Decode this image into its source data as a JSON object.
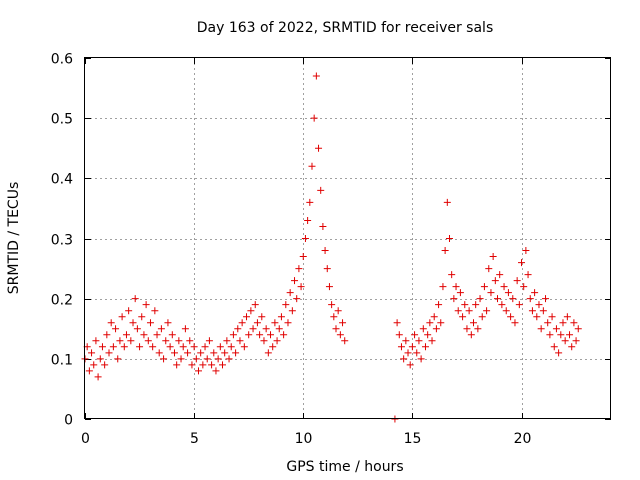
{
  "chart_data": {
    "type": "scatter",
    "title": "Day 163 of 2022, SRMTID for receiver sals",
    "xlabel": "GPS time / hours",
    "ylabel": "SRMTID / TECUs",
    "xlim": [
      0,
      24.1
    ],
    "ylim": [
      0,
      0.6
    ],
    "x_ticks": [
      0,
      5,
      10,
      15,
      20
    ],
    "x_tick_labels": [
      "0",
      "5",
      "10",
      "15",
      "20"
    ],
    "y_ticks": [
      0,
      0.1,
      0.2,
      0.3,
      0.4,
      0.5,
      0.6
    ],
    "y_tick_labels": [
      "0",
      "0.1",
      "0.2",
      "0.3",
      "0.4",
      "0.5",
      "0.6"
    ],
    "grid": true,
    "marker": "+",
    "marker_color": "#e00000",
    "series": [
      {
        "name": "SRMTID",
        "segments": [
          {
            "x": [
              0.0,
              0.1,
              0.2,
              0.3,
              0.4,
              0.5,
              0.6,
              0.7,
              0.8,
              0.9,
              1.0,
              1.1,
              1.2,
              1.3,
              1.4,
              1.5,
              1.6,
              1.7,
              1.8,
              1.9,
              2.0,
              2.1,
              2.2,
              2.3,
              2.4,
              2.5,
              2.6,
              2.7,
              2.8,
              2.9,
              3.0,
              3.1,
              3.2,
              3.3,
              3.4,
              3.5,
              3.6,
              3.7,
              3.8,
              3.9,
              4.0,
              4.1,
              4.2,
              4.3,
              4.4,
              4.5,
              4.6,
              4.7,
              4.8,
              4.9,
              5.0,
              5.1,
              5.2,
              5.3,
              5.4,
              5.5,
              5.6,
              5.7,
              5.8,
              5.9,
              6.0,
              6.1,
              6.2,
              6.3,
              6.4,
              6.5,
              6.6,
              6.7,
              6.8,
              6.9,
              7.0,
              7.1,
              7.2,
              7.3,
              7.4,
              7.5,
              7.6,
              7.7,
              7.8,
              7.9,
              8.0,
              8.1,
              8.2,
              8.3,
              8.4,
              8.5,
              8.6,
              8.7,
              8.8,
              8.9,
              9.0,
              9.1,
              9.2,
              9.3,
              9.4,
              9.5,
              9.6,
              9.7,
              9.8,
              9.9,
              10.0,
              10.1,
              10.2,
              10.3,
              10.4,
              10.5,
              10.6,
              10.7,
              10.8,
              10.9,
              11.0,
              11.1,
              11.2,
              11.3,
              11.4,
              11.5,
              11.6,
              11.7,
              11.8,
              11.9
            ],
            "y": [
              0.1,
              0.12,
              0.08,
              0.11,
              0.09,
              0.13,
              0.07,
              0.1,
              0.12,
              0.09,
              0.14,
              0.11,
              0.16,
              0.12,
              0.15,
              0.1,
              0.13,
              0.17,
              0.12,
              0.14,
              0.18,
              0.13,
              0.16,
              0.2,
              0.15,
              0.12,
              0.17,
              0.14,
              0.19,
              0.13,
              0.16,
              0.12,
              0.18,
              0.14,
              0.11,
              0.15,
              0.1,
              0.13,
              0.16,
              0.12,
              0.14,
              0.11,
              0.09,
              0.13,
              0.1,
              0.12,
              0.15,
              0.11,
              0.13,
              0.09,
              0.12,
              0.1,
              0.08,
              0.11,
              0.09,
              0.12,
              0.1,
              0.13,
              0.09,
              0.11,
              0.08,
              0.1,
              0.12,
              0.09,
              0.11,
              0.13,
              0.1,
              0.12,
              0.14,
              0.11,
              0.15,
              0.13,
              0.16,
              0.12,
              0.17,
              0.14,
              0.18,
              0.15,
              0.19,
              0.16,
              0.14,
              0.17,
              0.13,
              0.15,
              0.11,
              0.14,
              0.12,
              0.16,
              0.13,
              0.15,
              0.17,
              0.14,
              0.19,
              0.16,
              0.21,
              0.18,
              0.23,
              0.2,
              0.25,
              0.22,
              0.27,
              0.3,
              0.33,
              0.36,
              0.42,
              0.5,
              0.57,
              0.45,
              0.38,
              0.32,
              0.28,
              0.25,
              0.22,
              0.19,
              0.17,
              0.15,
              0.18,
              0.14,
              0.16,
              0.13
            ]
          },
          {
            "x": [
              14.2
            ],
            "y": [
              0.0
            ]
          },
          {
            "x": [
              14.3,
              14.4,
              14.5,
              14.6,
              14.7,
              14.8,
              14.9,
              15.0,
              15.1,
              15.2,
              15.3,
              15.4,
              15.5,
              15.6,
              15.7,
              15.8,
              15.9,
              16.0,
              16.1,
              16.2,
              16.3,
              16.4,
              16.5,
              16.6,
              16.7,
              16.8,
              16.9,
              17.0,
              17.1,
              17.2,
              17.3,
              17.4,
              17.5,
              17.6,
              17.7,
              17.8,
              17.9,
              18.0,
              18.1,
              18.2,
              18.3,
              18.4,
              18.5,
              18.6,
              18.7,
              18.8,
              18.9,
              19.0,
              19.1,
              19.2,
              19.3,
              19.4,
              19.5,
              19.6,
              19.7,
              19.8,
              19.9,
              20.0,
              20.1,
              20.2,
              20.3,
              20.4,
              20.5,
              20.6,
              20.7,
              20.8,
              20.9,
              21.0,
              21.1,
              21.2,
              21.3,
              21.4,
              21.5,
              21.6,
              21.7,
              21.8,
              21.9,
              22.0,
              22.1,
              22.2,
              22.3,
              22.4,
              22.5,
              22.6
            ],
            "y": [
              0.16,
              0.14,
              0.12,
              0.1,
              0.13,
              0.11,
              0.09,
              0.12,
              0.14,
              0.11,
              0.13,
              0.1,
              0.15,
              0.12,
              0.14,
              0.16,
              0.13,
              0.17,
              0.15,
              0.19,
              0.16,
              0.22,
              0.28,
              0.36,
              0.3,
              0.24,
              0.2,
              0.22,
              0.18,
              0.21,
              0.17,
              0.19,
              0.15,
              0.18,
              0.14,
              0.16,
              0.19,
              0.15,
              0.2,
              0.17,
              0.22,
              0.18,
              0.25,
              0.21,
              0.27,
              0.23,
              0.2,
              0.24,
              0.19,
              0.22,
              0.18,
              0.21,
              0.17,
              0.2,
              0.16,
              0.23,
              0.19,
              0.26,
              0.22,
              0.28,
              0.24,
              0.2,
              0.18,
              0.21,
              0.17,
              0.19,
              0.15,
              0.18,
              0.2,
              0.16,
              0.14,
              0.17,
              0.12,
              0.15,
              0.11,
              0.14,
              0.16,
              0.13,
              0.17,
              0.14,
              0.12,
              0.16,
              0.13,
              0.15
            ]
          }
        ]
      }
    ]
  }
}
